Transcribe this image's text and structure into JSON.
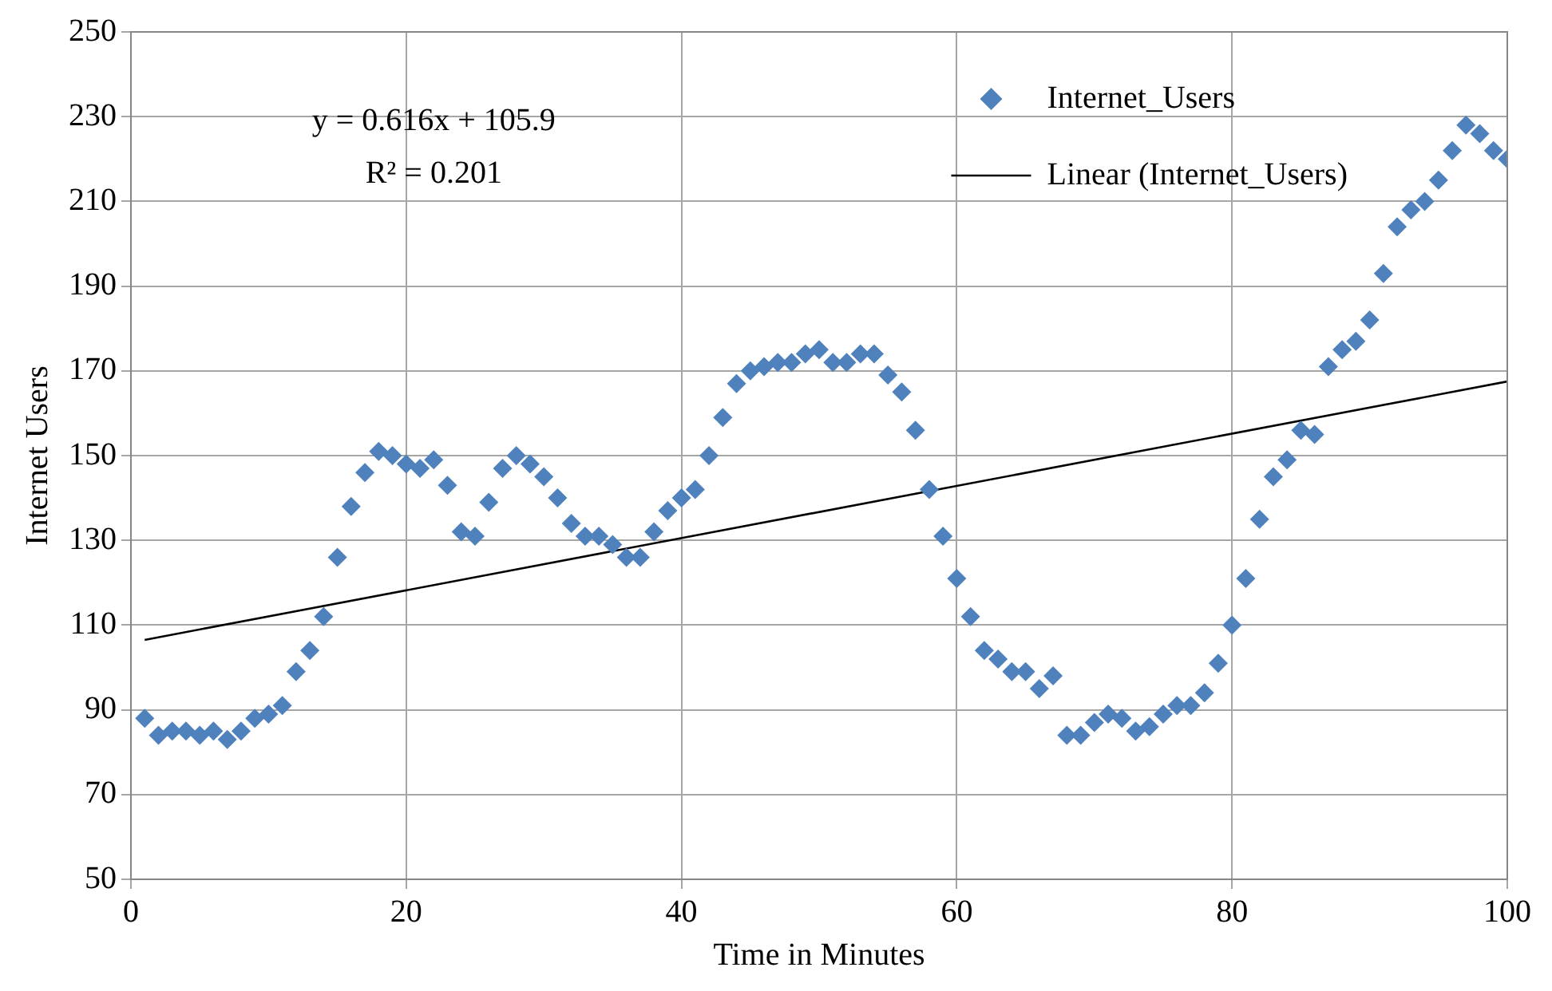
{
  "chart_data": {
    "type": "scatter",
    "xlabel": "Time in Minutes",
    "ylabel": "Internet Users",
    "xlim": [
      0,
      100
    ],
    "xticks": [
      0,
      20,
      40,
      60,
      80,
      100
    ],
    "ylim": [
      50,
      250
    ],
    "yticks": [
      50,
      70,
      90,
      110,
      130,
      150,
      170,
      190,
      210,
      230,
      250
    ],
    "grid": true,
    "legend": "top right",
    "marker": "diamond",
    "annotations": [
      "y = 0.616x + 105.9",
      "R² = 0.201"
    ],
    "series": [
      {
        "name": "Internet_Users",
        "color": "#4f81bd",
        "x": [
          1,
          2,
          3,
          4,
          5,
          6,
          7,
          8,
          9,
          10,
          11,
          12,
          13,
          14,
          15,
          16,
          17,
          18,
          19,
          20,
          21,
          22,
          23,
          24,
          25,
          26,
          27,
          28,
          29,
          30,
          31,
          32,
          33,
          34,
          35,
          36,
          37,
          38,
          39,
          40,
          41,
          42,
          43,
          44,
          45,
          46,
          47,
          48,
          49,
          50,
          51,
          52,
          53,
          54,
          55,
          56,
          57,
          58,
          59,
          60,
          61,
          62,
          63,
          64,
          65,
          66,
          67,
          68,
          69,
          70,
          71,
          72,
          73,
          74,
          75,
          76,
          77,
          78,
          79,
          80,
          81,
          82,
          83,
          84,
          85,
          86,
          87,
          88,
          89,
          90,
          91,
          92,
          93,
          94,
          95,
          96,
          97,
          98,
          99,
          100
        ],
        "values": [
          88,
          84,
          85,
          85,
          84,
          85,
          83,
          85,
          88,
          89,
          91,
          99,
          104,
          112,
          126,
          138,
          146,
          151,
          150,
          148,
          147,
          149,
          143,
          132,
          131,
          139,
          147,
          150,
          148,
          145,
          140,
          134,
          131,
          131,
          129,
          126,
          126,
          132,
          137,
          140,
          142,
          150,
          159,
          167,
          170,
          171,
          172,
          172,
          174,
          175,
          172,
          172,
          174,
          174,
          169,
          165,
          156,
          142,
          131,
          121,
          112,
          104,
          102,
          99,
          99,
          95,
          98,
          84,
          84,
          87,
          89,
          88,
          85,
          86,
          89,
          91,
          91,
          94,
          101,
          110,
          121,
          135,
          145,
          149,
          156,
          155,
          171,
          175,
          177,
          182,
          193,
          204,
          208,
          210,
          215,
          222,
          228,
          226,
          222,
          220
        ]
      },
      {
        "name": "Linear (Internet_Users)",
        "color": "#000000",
        "type": "line",
        "marker": "none",
        "x": [
          1,
          100
        ],
        "values": [
          106.5,
          167.5
        ]
      }
    ]
  }
}
